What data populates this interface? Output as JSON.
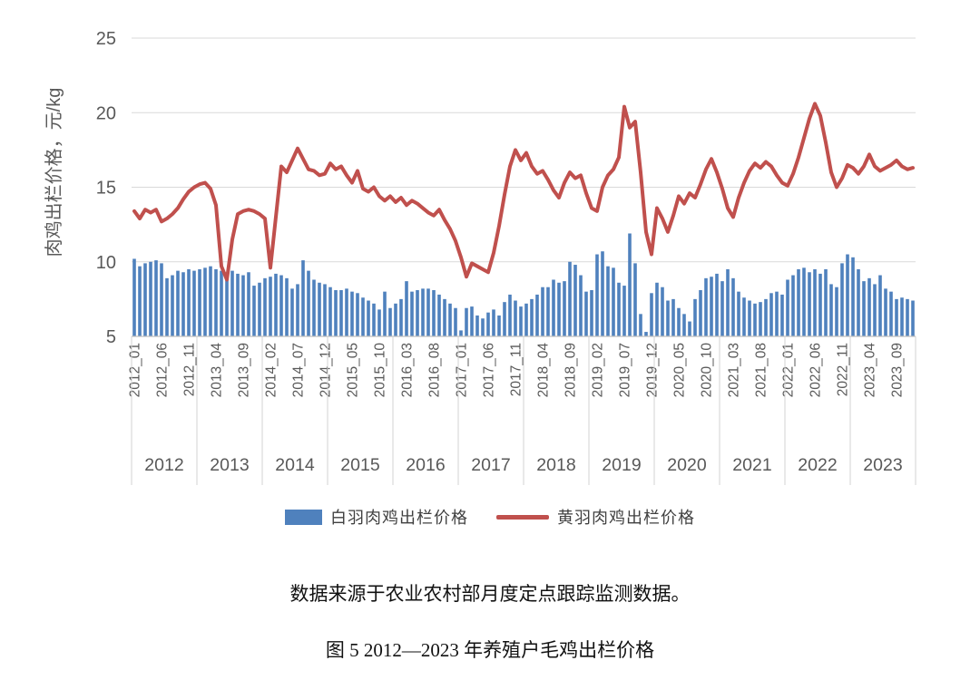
{
  "chart": {
    "y_axis_title": "肉鸡出栏价格，元/kg",
    "y_ticks": [
      5,
      10,
      15,
      20,
      25
    ],
    "ylim": [
      5,
      25
    ],
    "x_tick_labels": [
      "2012_01",
      "2012_06",
      "2012_11",
      "2013_04",
      "2013_09",
      "2014_02",
      "2014_07",
      "2014_12",
      "2015_05",
      "2015_10",
      "2016_03",
      "2016_08",
      "2017_01",
      "2017_06",
      "2017_11",
      "2018_04",
      "2018_09",
      "2019_02",
      "2019_07",
      "2019_12",
      "2020_05",
      "2020_10",
      "2021_03",
      "2021_08",
      "2022_01",
      "2022_06",
      "2022_11",
      "2023_04",
      "2023_09"
    ],
    "year_labels": [
      "2012",
      "2013",
      "2014",
      "2015",
      "2016",
      "2017",
      "2018",
      "2019",
      "2020",
      "2021",
      "2022",
      "2023"
    ],
    "colors": {
      "bar": "#4f81bd",
      "line": "#c0504d",
      "grid": "#d9d9d9",
      "axis": "#bfbfbf",
      "tick_text": "#595959"
    }
  },
  "chart_data": {
    "type": "bar+line",
    "title": "图 5 2012—2023 年养殖户毛鸡出栏价格",
    "ylabel": "肉鸡出栏价格，元/kg",
    "ylim": [
      5,
      25
    ],
    "grid": true,
    "legend_position": "bottom",
    "months": [
      "2012_01",
      "2012_02",
      "2012_03",
      "2012_04",
      "2012_05",
      "2012_06",
      "2012_07",
      "2012_08",
      "2012_09",
      "2012_10",
      "2012_11",
      "2012_12",
      "2013_01",
      "2013_02",
      "2013_03",
      "2013_04",
      "2013_05",
      "2013_06",
      "2013_07",
      "2013_08",
      "2013_09",
      "2013_10",
      "2013_11",
      "2013_12",
      "2014_01",
      "2014_02",
      "2014_03",
      "2014_04",
      "2014_05",
      "2014_06",
      "2014_07",
      "2014_08",
      "2014_09",
      "2014_10",
      "2014_11",
      "2014_12",
      "2015_01",
      "2015_02",
      "2015_03",
      "2015_04",
      "2015_05",
      "2015_06",
      "2015_07",
      "2015_08",
      "2015_09",
      "2015_10",
      "2015_11",
      "2015_12",
      "2016_01",
      "2016_02",
      "2016_03",
      "2016_04",
      "2016_05",
      "2016_06",
      "2016_07",
      "2016_08",
      "2016_09",
      "2016_10",
      "2016_11",
      "2016_12",
      "2017_01",
      "2017_02",
      "2017_03",
      "2017_04",
      "2017_05",
      "2017_06",
      "2017_07",
      "2017_08",
      "2017_09",
      "2017_10",
      "2017_11",
      "2017_12",
      "2018_01",
      "2018_02",
      "2018_03",
      "2018_04",
      "2018_05",
      "2018_06",
      "2018_07",
      "2018_08",
      "2018_09",
      "2018_10",
      "2018_11",
      "2018_12",
      "2019_01",
      "2019_02",
      "2019_03",
      "2019_04",
      "2019_05",
      "2019_06",
      "2019_07",
      "2019_08",
      "2019_09",
      "2019_10",
      "2019_11",
      "2019_12",
      "2020_01",
      "2020_02",
      "2020_03",
      "2020_04",
      "2020_05",
      "2020_06",
      "2020_07",
      "2020_08",
      "2020_09",
      "2020_10",
      "2020_11",
      "2020_12",
      "2021_01",
      "2021_02",
      "2021_03",
      "2021_04",
      "2021_05",
      "2021_06",
      "2021_07",
      "2021_08",
      "2021_09",
      "2021_10",
      "2021_11",
      "2021_12",
      "2022_01",
      "2022_02",
      "2022_03",
      "2022_04",
      "2022_05",
      "2022_06",
      "2022_07",
      "2022_08",
      "2022_09",
      "2022_10",
      "2022_11",
      "2022_12",
      "2023_01",
      "2023_02",
      "2023_03",
      "2023_04",
      "2023_05",
      "2023_06",
      "2023_07",
      "2023_08",
      "2023_09",
      "2023_10",
      "2023_11",
      "2023_12"
    ],
    "series": [
      {
        "name": "白羽肉鸡出栏价格",
        "type": "bar",
        "color": "#4f81bd",
        "values": [
          10.2,
          9.7,
          9.9,
          10.0,
          10.1,
          9.9,
          8.9,
          9.1,
          9.4,
          9.3,
          9.5,
          9.4,
          9.5,
          9.6,
          9.7,
          9.5,
          9.4,
          9.3,
          9.4,
          9.2,
          9.1,
          9.3,
          8.4,
          8.6,
          8.9,
          9.0,
          9.2,
          9.1,
          8.9,
          8.2,
          8.5,
          10.1,
          9.4,
          8.8,
          8.6,
          8.5,
          8.3,
          8.1,
          8.1,
          8.2,
          8.0,
          7.9,
          7.6,
          7.4,
          7.2,
          6.8,
          8.0,
          6.9,
          7.2,
          7.5,
          8.7,
          8.0,
          8.1,
          8.2,
          8.2,
          8.1,
          7.8,
          7.5,
          7.2,
          6.9,
          5.4,
          6.9,
          7.0,
          6.4,
          6.2,
          6.6,
          6.8,
          6.4,
          7.3,
          7.8,
          7.4,
          7.0,
          7.2,
          7.5,
          7.8,
          8.3,
          8.3,
          8.8,
          8.6,
          8.7,
          10.0,
          9.8,
          9.1,
          8.0,
          8.1,
          10.5,
          10.7,
          9.7,
          9.6,
          8.6,
          8.4,
          11.9,
          9.9,
          6.5,
          5.3,
          7.9,
          8.6,
          8.3,
          7.4,
          7.5,
          6.9,
          6.5,
          6.0,
          7.5,
          8.1,
          8.9,
          9.0,
          9.2,
          8.7,
          9.5,
          8.9,
          8.0,
          7.6,
          7.4,
          7.2,
          7.3,
          7.5,
          7.9,
          8.0,
          7.8,
          8.8,
          9.1,
          9.5,
          9.6,
          9.3,
          9.5,
          9.2,
          9.5,
          8.5,
          8.3,
          9.9,
          10.5,
          10.3,
          9.5,
          8.7,
          8.9,
          8.5,
          9.1,
          8.2,
          8.0,
          7.5,
          7.6,
          7.5,
          7.4
        ]
      },
      {
        "name": "黄羽肉鸡出栏价格",
        "type": "line",
        "color": "#c0504d",
        "values": [
          13.4,
          12.9,
          13.5,
          13.3,
          13.5,
          12.7,
          12.9,
          13.2,
          13.6,
          14.2,
          14.7,
          15.0,
          15.2,
          15.3,
          14.9,
          13.8,
          9.7,
          8.8,
          11.5,
          13.2,
          13.4,
          13.5,
          13.4,
          13.2,
          12.9,
          9.6,
          13.0,
          16.4,
          16.0,
          16.8,
          17.6,
          16.9,
          16.2,
          16.1,
          15.8,
          15.9,
          16.6,
          16.2,
          16.4,
          15.8,
          15.3,
          16.1,
          14.9,
          14.7,
          15.0,
          14.4,
          14.1,
          14.4,
          14.0,
          14.3,
          13.8,
          14.1,
          13.9,
          13.6,
          13.3,
          13.1,
          13.5,
          12.8,
          12.2,
          11.4,
          10.3,
          9.0,
          9.9,
          9.7,
          9.5,
          9.3,
          10.6,
          12.4,
          14.5,
          16.4,
          17.5,
          16.8,
          17.3,
          16.4,
          15.9,
          16.1,
          15.5,
          14.8,
          14.3,
          15.3,
          16.0,
          15.6,
          15.8,
          14.6,
          13.6,
          13.4,
          15.0,
          15.8,
          16.2,
          17.0,
          20.4,
          19.0,
          19.4,
          16.0,
          12.0,
          10.5,
          13.6,
          12.9,
          12.0,
          13.1,
          14.4,
          13.9,
          14.6,
          14.3,
          15.2,
          16.2,
          16.9,
          16.0,
          14.9,
          13.6,
          13.0,
          14.3,
          15.3,
          16.1,
          16.6,
          16.3,
          16.7,
          16.4,
          15.8,
          15.3,
          15.1,
          15.9,
          17.0,
          18.3,
          19.6,
          20.6,
          19.8,
          18.0,
          16.0,
          15.0,
          15.6,
          16.5,
          16.3,
          15.9,
          16.4,
          17.2,
          16.4,
          16.1,
          16.3,
          16.5,
          16.8,
          16.4,
          16.2,
          16.3
        ]
      }
    ]
  },
  "legend": {
    "bar_label": "白羽肉鸡出栏价格",
    "line_label": "黄羽肉鸡出栏价格"
  },
  "captions": {
    "source": "数据来源于农业农村部月度定点跟踪监测数据。",
    "figure_title": "图 5 2012—2023 年养殖户毛鸡出栏价格"
  }
}
